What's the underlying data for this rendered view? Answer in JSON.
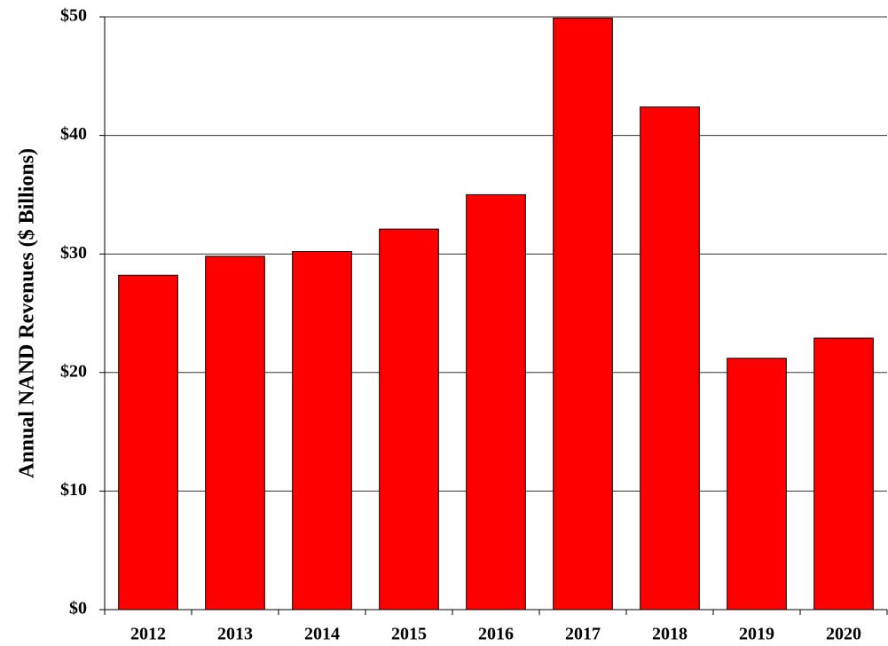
{
  "chart_data": {
    "type": "bar",
    "y_axis_label": "Annual NAND Revenues ($ Billions)",
    "categories": [
      "2012",
      "2013",
      "2014",
      "2015",
      "2016",
      "2017",
      "2018",
      "2019",
      "2020"
    ],
    "values": [
      28.2,
      29.8,
      30.2,
      32.1,
      35.0,
      49.9,
      42.4,
      21.2,
      22.9
    ],
    "color": "#ff0000",
    "ylim": [
      0,
      50
    ],
    "yticks": [
      {
        "value": 0,
        "label": "$0"
      },
      {
        "value": 10,
        "label": "$10"
      },
      {
        "value": 20,
        "label": "$20"
      },
      {
        "value": 30,
        "label": "$30"
      },
      {
        "value": 40,
        "label": "$40"
      },
      {
        "value": 50,
        "label": "$50"
      }
    ],
    "grid": true
  }
}
